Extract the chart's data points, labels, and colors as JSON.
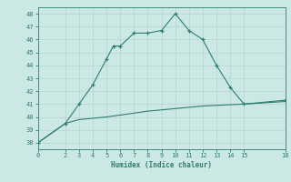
{
  "title": "",
  "xlabel": "Humidex (Indice chaleur)",
  "line1_x": [
    0,
    2,
    3,
    4,
    5,
    5.5,
    6,
    7,
    8,
    9,
    10,
    11,
    12,
    13,
    14,
    15,
    18
  ],
  "line1_y": [
    38,
    39.5,
    41,
    42.5,
    44.5,
    45.5,
    45.5,
    46.5,
    46.5,
    46.7,
    48,
    46.7,
    46,
    44,
    42.3,
    41,
    41.3
  ],
  "line2_x": [
    0,
    2,
    3,
    4,
    5,
    6,
    7,
    8,
    9,
    10,
    11,
    12,
    13,
    14,
    15,
    18
  ],
  "line2_y": [
    38,
    39.5,
    39.8,
    39.9,
    40.0,
    40.15,
    40.3,
    40.45,
    40.55,
    40.65,
    40.75,
    40.85,
    40.9,
    40.95,
    41.0,
    41.2
  ],
  "line_color": "#2e7d72",
  "bg_color": "#cce8e4",
  "grid_color": "#b8d8d4",
  "xlim": [
    0,
    18
  ],
  "ylim": [
    37.5,
    48.5
  ],
  "xticks": [
    0,
    2,
    3,
    4,
    5,
    6,
    7,
    8,
    9,
    10,
    11,
    12,
    13,
    14,
    15,
    18
  ],
  "yticks": [
    38,
    39,
    40,
    41,
    42,
    43,
    44,
    45,
    46,
    47,
    48
  ]
}
